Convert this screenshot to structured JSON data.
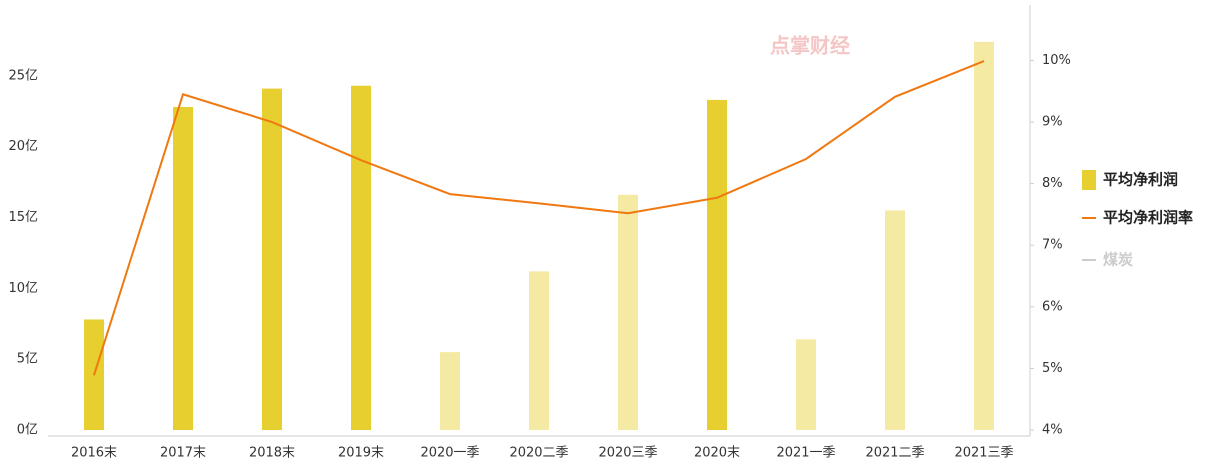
{
  "chart_data": {
    "type": "bar-line",
    "watermark": "点掌财经",
    "categories": [
      "2016末",
      "2017末",
      "2018末",
      "2019末",
      "2020一季",
      "2020二季",
      "2020三季",
      "2020末",
      "2021一季",
      "2021二季",
      "2021三季"
    ],
    "series": [
      {
        "name": "平均净利润",
        "type": "bar",
        "color": "#e6cf2e",
        "colors": [
          "#e6cf2e",
          "#e6cf2e",
          "#e6cf2e",
          "#e6cf2e",
          "#f5eaa4",
          "#f5eaa4",
          "#f5eaa4",
          "#e6cf2e",
          "#f5eaa4",
          "#f5eaa4",
          "#f5eaa4"
        ],
        "values": [
          7.8,
          22.8,
          24.1,
          24.3,
          5.5,
          11.2,
          16.6,
          23.3,
          6.4,
          15.5,
          27.4
        ]
      },
      {
        "name": "平均净利润率",
        "type": "line",
        "axis": "y2",
        "color": "#f07810",
        "values": [
          4.89,
          9.45,
          9.0,
          8.38,
          7.83,
          7.68,
          7.52,
          7.77,
          8.4,
          9.41,
          9.99
        ]
      },
      {
        "name": "煤炭",
        "type": "line",
        "color": "#cccccc",
        "visible": false
      }
    ],
    "ylim": [
      0,
      30
    ],
    "yticks": [
      {
        "value": 0,
        "label": "0亿"
      },
      {
        "value": 5,
        "label": "5亿"
      },
      {
        "value": 10,
        "label": "10亿"
      },
      {
        "value": 15,
        "label": "15亿"
      },
      {
        "value": 20,
        "label": "20亿"
      },
      {
        "value": 25,
        "label": "25亿"
      }
    ],
    "y2lim": [
      4,
      10.9
    ],
    "y2ticks": [
      {
        "value": 4,
        "label": "4%"
      },
      {
        "value": 5,
        "label": "5%"
      },
      {
        "value": 6,
        "label": "6%"
      },
      {
        "value": 7,
        "label": "7%"
      },
      {
        "value": 8,
        "label": "8%"
      },
      {
        "value": 9,
        "label": "9%"
      },
      {
        "value": 10,
        "label": "10%"
      }
    ],
    "grid": false,
    "legend": "right"
  }
}
